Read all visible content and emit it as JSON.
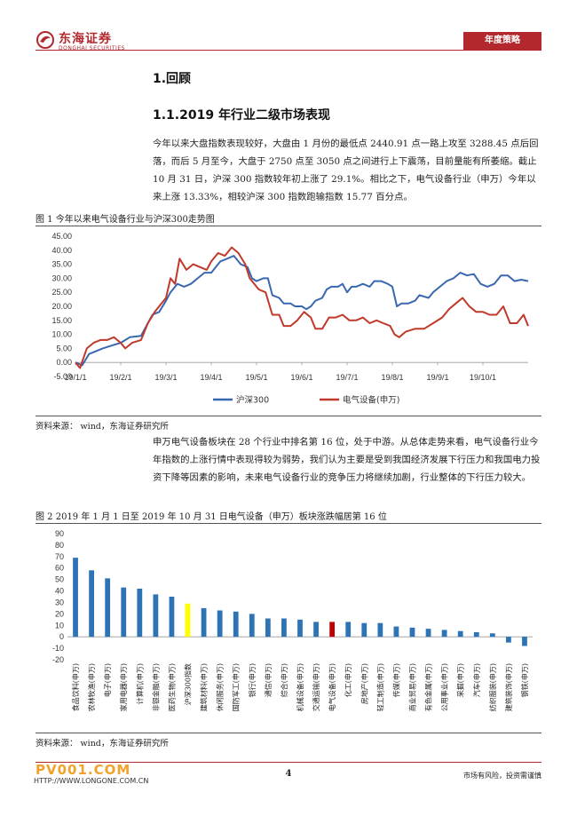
{
  "header": {
    "company_cn": "东海证券",
    "company_en": "DONGHAI SECURITIES",
    "tag": "年度策略"
  },
  "section": {
    "h1": "1.回顾",
    "h2": "1.1.2019 年行业二级市场表现"
  },
  "paragraph1": "今年以来大盘指数表现较好，大盘由 1 月份的最低点 2440.91 点一路上攻至 3288.45 点后回落，而后 5 月至今，大盘于 2750 点至 3050 点之间进行上下震荡，目前量能有所萎缩。截止 10 月 31 日，沪深 300 指数较年初上涨了 29.1%。相比之下，电气设备行业（申万）今年以来上涨 13.33%，相较沪深 300 指数跑输指数 15.77 百分点。",
  "figure1": {
    "title": "图 1   今年以来电气设备行业与沪深300走势图",
    "source": "资料来源：   wind，东海证券研究所"
  },
  "paragraph2": "申万电气设备板块在 28 个行业中排名第 16 位，处于中游。从总体走势来看，电气设备行业今年指数的上涨行情中表现得较为弱势，我们认为主要是受到我国经济发展下行压力和我国电力投资下降等因素的影响，未来电气设备行业的竞争压力将继续加剧，行业整体的下行压力较大。",
  "figure2": {
    "title": "图 2   2019 年 1 月 1 日至 2019 年 10 月 31 日电气设备（申万）板块涨跌幅居第 16 位",
    "source": "资料来源：   wind，东海证券研究所"
  },
  "footer": {
    "page": "4",
    "disclaimer": "市场有风险，投资需谨慎",
    "watermark": "PV001.COM",
    "watermark_url": "HTTP://WWW.LONGONE.COM.CN"
  },
  "colors": {
    "brand": "#b3282d",
    "hs300": "#3a68b0",
    "elec": "#c0392b",
    "bar": "#2e74b5",
    "bar_hs300": "#ffff00",
    "bar_elec": "#c00000"
  },
  "chart_data": [
    {
      "type": "line",
      "title": "",
      "xlabel": "",
      "ylabel": "",
      "ylim": [
        -5,
        45
      ],
      "yticks": [
        "-5.00",
        "0.00",
        "5.00",
        "10.00",
        "15.00",
        "20.00",
        "25.00",
        "30.00",
        "35.00",
        "40.00",
        "45.00"
      ],
      "x_tick_labels": [
        "19/1/1",
        "19/2/1",
        "19/3/1",
        "19/4/1",
        "19/5/1",
        "19/6/1",
        "19/7/1",
        "19/8/1",
        "19/9/1",
        "19/10/1"
      ],
      "x_tick_month": [
        0,
        1,
        2,
        3,
        4,
        5,
        6,
        7,
        8,
        9
      ],
      "x_range_months": [
        0,
        10
      ],
      "legend": "bottom",
      "series": [
        {
          "name": "沪深300",
          "color": "#3a68b0",
          "points": [
            [
              0,
              0
            ],
            [
              0.15,
              -1
            ],
            [
              0.3,
              3
            ],
            [
              0.45,
              4
            ],
            [
              0.6,
              5
            ],
            [
              0.8,
              6
            ],
            [
              1.0,
              7
            ],
            [
              1.2,
              9
            ],
            [
              1.45,
              9.5
            ],
            [
              1.6,
              14
            ],
            [
              1.7,
              17
            ],
            [
              1.85,
              18
            ],
            [
              2.0,
              22
            ],
            [
              2.1,
              25
            ],
            [
              2.25,
              28
            ],
            [
              2.4,
              27
            ],
            [
              2.55,
              28
            ],
            [
              2.7,
              30
            ],
            [
              2.85,
              32
            ],
            [
              3.0,
              32
            ],
            [
              3.1,
              34
            ],
            [
              3.2,
              36
            ],
            [
              3.35,
              37
            ],
            [
              3.5,
              38
            ],
            [
              3.65,
              35
            ],
            [
              3.8,
              34
            ],
            [
              3.9,
              30
            ],
            [
              4.0,
              29
            ],
            [
              4.15,
              30
            ],
            [
              4.25,
              30
            ],
            [
              4.35,
              24
            ],
            [
              4.5,
              23
            ],
            [
              4.6,
              21
            ],
            [
              4.75,
              21
            ],
            [
              4.85,
              20
            ],
            [
              5.0,
              20
            ],
            [
              5.1,
              19
            ],
            [
              5.2,
              20
            ],
            [
              5.3,
              22
            ],
            [
              5.45,
              23
            ],
            [
              5.55,
              26
            ],
            [
              5.65,
              27
            ],
            [
              5.8,
              27
            ],
            [
              5.9,
              28
            ],
            [
              6.0,
              25
            ],
            [
              6.1,
              27
            ],
            [
              6.2,
              27
            ],
            [
              6.35,
              28
            ],
            [
              6.5,
              27
            ],
            [
              6.6,
              29
            ],
            [
              6.75,
              29
            ],
            [
              6.9,
              28
            ],
            [
              7.0,
              27
            ],
            [
              7.1,
              20
            ],
            [
              7.2,
              21
            ],
            [
              7.35,
              21
            ],
            [
              7.5,
              22
            ],
            [
              7.6,
              24
            ],
            [
              7.8,
              23
            ],
            [
              7.9,
              25
            ],
            [
              8.05,
              27
            ],
            [
              8.2,
              29
            ],
            [
              8.35,
              30
            ],
            [
              8.5,
              32
            ],
            [
              8.65,
              31
            ],
            [
              8.8,
              31.5
            ],
            [
              8.95,
              28
            ],
            [
              9.1,
              27
            ],
            [
              9.25,
              28
            ],
            [
              9.4,
              31
            ],
            [
              9.55,
              31
            ],
            [
              9.7,
              29
            ],
            [
              9.85,
              29.5
            ],
            [
              10.0,
              29
            ]
          ]
        },
        {
          "name": "电气设备(申万)",
          "color": "#c0392b",
          "points": [
            [
              0,
              0
            ],
            [
              0.1,
              -2
            ],
            [
              0.25,
              5
            ],
            [
              0.4,
              7
            ],
            [
              0.55,
              8
            ],
            [
              0.7,
              8
            ],
            [
              0.85,
              9
            ],
            [
              1.0,
              7
            ],
            [
              1.1,
              5
            ],
            [
              1.25,
              7
            ],
            [
              1.45,
              8
            ],
            [
              1.6,
              14
            ],
            [
              1.75,
              18
            ],
            [
              1.9,
              21
            ],
            [
              2.0,
              23
            ],
            [
              2.1,
              30
            ],
            [
              2.2,
              28
            ],
            [
              2.3,
              37
            ],
            [
              2.45,
              33
            ],
            [
              2.6,
              35
            ],
            [
              2.75,
              34
            ],
            [
              2.9,
              33
            ],
            [
              3.0,
              36
            ],
            [
              3.15,
              39
            ],
            [
              3.3,
              38
            ],
            [
              3.45,
              41
            ],
            [
              3.6,
              39
            ],
            [
              3.75,
              35
            ],
            [
              3.85,
              30
            ],
            [
              3.95,
              28
            ],
            [
              4.05,
              26
            ],
            [
              4.2,
              25
            ],
            [
              4.35,
              17
            ],
            [
              4.5,
              17
            ],
            [
              4.6,
              13
            ],
            [
              4.75,
              13
            ],
            [
              4.9,
              15
            ],
            [
              5.05,
              18
            ],
            [
              5.2,
              16
            ],
            [
              5.3,
              12
            ],
            [
              5.45,
              12
            ],
            [
              5.6,
              16
            ],
            [
              5.75,
              16
            ],
            [
              5.9,
              17
            ],
            [
              6.05,
              15
            ],
            [
              6.2,
              15
            ],
            [
              6.35,
              16
            ],
            [
              6.5,
              14
            ],
            [
              6.65,
              15
            ],
            [
              6.8,
              14
            ],
            [
              6.95,
              13
            ],
            [
              7.05,
              10
            ],
            [
              7.15,
              9
            ],
            [
              7.3,
              11
            ],
            [
              7.5,
              12
            ],
            [
              7.7,
              12
            ],
            [
              7.9,
              14
            ],
            [
              8.1,
              16
            ],
            [
              8.25,
              19
            ],
            [
              8.4,
              21
            ],
            [
              8.55,
              23
            ],
            [
              8.7,
              20
            ],
            [
              8.85,
              18
            ],
            [
              9.0,
              18
            ],
            [
              9.15,
              17
            ],
            [
              9.3,
              17
            ],
            [
              9.45,
              20
            ],
            [
              9.6,
              14
            ],
            [
              9.75,
              14
            ],
            [
              9.9,
              17
            ],
            [
              10.0,
              13
            ]
          ]
        }
      ]
    },
    {
      "type": "bar",
      "title": "",
      "xlabel": "",
      "ylabel": "",
      "ylim": [
        -20,
        90
      ],
      "yticks": [
        "-20",
        "-10",
        "0",
        "10",
        "20",
        "30",
        "40",
        "50",
        "60",
        "70",
        "80",
        "90"
      ],
      "legend": "none",
      "categories": [
        "食品饮料(申万)",
        "农林牧渔(申万)",
        "电子(申万)",
        "家用电器(申万)",
        "计算机(申万)",
        "非银金融(申万)",
        "医药生物(申万)",
        "沪深300指数",
        "建筑材料(申万)",
        "休闲服务(申万)",
        "国防军工(申万)",
        "银行(申万)",
        "通信(申万)",
        "综合(申万)",
        "机械设备(申万)",
        "交通运输(申万)",
        "电气设备(申万)",
        "化工(申万)",
        "房地产(申万)",
        "轻工制造(申万)",
        "传媒(申万)",
        "商业贸易(申万)",
        "有色金属(申万)",
        "公用事业(申万)",
        "采掘(申万)",
        "汽车(申万)",
        "纺织服装(申万)",
        "建筑装饰(申万)",
        "钢铁(申万)"
      ],
      "values": [
        69,
        58,
        51,
        43,
        42,
        37,
        35,
        29,
        25,
        23,
        22,
        20,
        16,
        16,
        15,
        13,
        13,
        13,
        12,
        12,
        9,
        8,
        7,
        6,
        5,
        4,
        3,
        -5,
        -8
      ],
      "highlight": {
        "7": "#ffff00",
        "16": "#c00000"
      }
    }
  ]
}
